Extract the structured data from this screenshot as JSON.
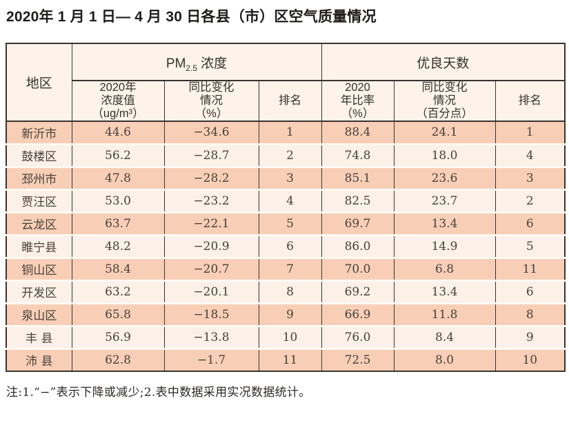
{
  "page": {
    "title": "2020年 1 月 1 日— 4 月 30 日各县（市）区空气质量情况",
    "note": "注:1.“−”表示下降或减少;2.表中数据采用实况数据统计。"
  },
  "table": {
    "region_header": "地区",
    "groups": {
      "pm25": {
        "base": "PM",
        "sub": "2.5",
        "label": "浓度"
      },
      "good_days": {
        "label": "优良天数"
      }
    },
    "sub_headers": {
      "pm_value": [
        "2020年",
        "浓度值",
        "（ug/m³）"
      ],
      "pm_change": [
        "同比变化",
        "情况",
        "（%）"
      ],
      "pm_rank": [
        "排名"
      ],
      "days_rate": [
        "2020",
        "年比率",
        "（%）"
      ],
      "days_change": [
        "同比变化",
        "情况",
        "（百分点）"
      ],
      "days_rank": [
        "排名"
      ]
    },
    "rows": [
      {
        "region": "新沂市",
        "pm_value": "44.6",
        "pm_change": "−34.6",
        "pm_rank": "1",
        "days_rate": "88.4",
        "days_change": "24.1",
        "days_rank": "1"
      },
      {
        "region": "鼓楼区",
        "pm_value": "56.2",
        "pm_change": "−28.7",
        "pm_rank": "2",
        "days_rate": "74.8",
        "days_change": "18.0",
        "days_rank": "4"
      },
      {
        "region": "邳州市",
        "pm_value": "47.8",
        "pm_change": "−28.2",
        "pm_rank": "3",
        "days_rate": "85.1",
        "days_change": "23.6",
        "days_rank": "3"
      },
      {
        "region": "贾汪区",
        "pm_value": "53.0",
        "pm_change": "−23.2",
        "pm_rank": "4",
        "days_rate": "82.5",
        "days_change": "23.7",
        "days_rank": "2"
      },
      {
        "region": "云龙区",
        "pm_value": "63.7",
        "pm_change": "−22.1",
        "pm_rank": "5",
        "days_rate": "69.7",
        "days_change": "13.4",
        "days_rank": "6"
      },
      {
        "region": "睢宁县",
        "pm_value": "48.2",
        "pm_change": "−20.9",
        "pm_rank": "6",
        "days_rate": "86.0",
        "days_change": "14.9",
        "days_rank": "5"
      },
      {
        "region": "铜山区",
        "pm_value": "58.4",
        "pm_change": "−20.7",
        "pm_rank": "7",
        "days_rate": "70.0",
        "days_change": "6.8",
        "days_rank": "11"
      },
      {
        "region": "开发区",
        "pm_value": "63.2",
        "pm_change": "−20.1",
        "pm_rank": "8",
        "days_rate": "69.2",
        "days_change": "13.4",
        "days_rank": "6"
      },
      {
        "region": "泉山区",
        "pm_value": "65.8",
        "pm_change": "−18.5",
        "pm_rank": "9",
        "days_rate": "66.9",
        "days_change": "11.8",
        "days_rank": "8"
      },
      {
        "region": "丰 县",
        "pm_value": "56.9",
        "pm_change": "−13.8",
        "pm_rank": "10",
        "days_rate": "76.0",
        "days_change": "8.4",
        "days_rank": "9"
      },
      {
        "region": "沛 县",
        "pm_value": "62.8",
        "pm_change": "−1.7",
        "pm_rank": "11",
        "days_rate": "72.5",
        "days_change": "8.0",
        "days_rank": "10"
      }
    ]
  }
}
